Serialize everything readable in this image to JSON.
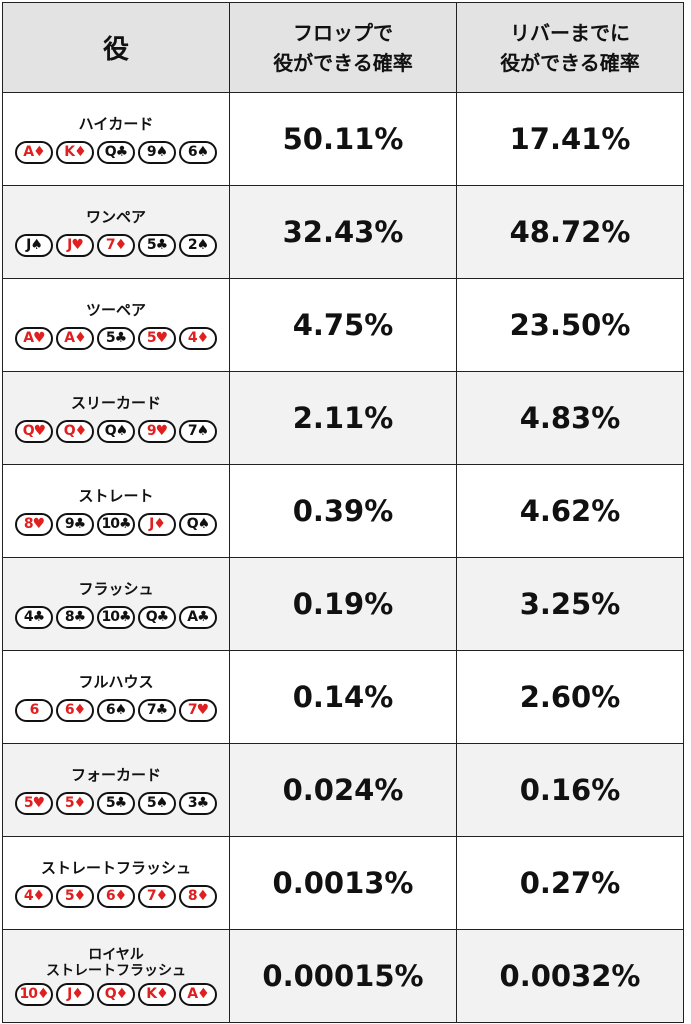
{
  "header": {
    "hand": "役",
    "flop": [
      "フロップで",
      "役ができる確率"
    ],
    "river": [
      "リバーまでに",
      "役ができる確率"
    ]
  },
  "rows": [
    {
      "name": [
        "ハイカード"
      ],
      "flop": "50.11%",
      "river": "17.41%",
      "cards": [
        {
          "t": "A♦",
          "c": "red"
        },
        {
          "t": "K♦",
          "c": "red"
        },
        {
          "t": "Q♣",
          "c": "black"
        },
        {
          "t": "9♠",
          "c": "black"
        },
        {
          "t": "6♠",
          "c": "black"
        }
      ]
    },
    {
      "name": [
        "ワンペア"
      ],
      "flop": "32.43%",
      "river": "48.72%",
      "cards": [
        {
          "t": "J♠",
          "c": "black"
        },
        {
          "t": "J♥",
          "c": "red"
        },
        {
          "t": "7♦",
          "c": "red"
        },
        {
          "t": "5♣",
          "c": "black"
        },
        {
          "t": "2♠",
          "c": "black"
        }
      ]
    },
    {
      "name": [
        "ツーペア"
      ],
      "flop": "4.75%",
      "river": "23.50%",
      "cards": [
        {
          "t": "A♥",
          "c": "red"
        },
        {
          "t": "A♦",
          "c": "red"
        },
        {
          "t": "5♣",
          "c": "black"
        },
        {
          "t": "5♥",
          "c": "red"
        },
        {
          "t": "4♦",
          "c": "red"
        }
      ]
    },
    {
      "name": [
        "スリーカード"
      ],
      "flop": "2.11%",
      "river": "4.83%",
      "cards": [
        {
          "t": "Q♥",
          "c": "red"
        },
        {
          "t": "Q♦",
          "c": "red"
        },
        {
          "t": "Q♠",
          "c": "black"
        },
        {
          "t": "9♥",
          "c": "red"
        },
        {
          "t": "7♠",
          "c": "black"
        }
      ]
    },
    {
      "name": [
        "ストレート"
      ],
      "flop": "0.39%",
      "river": "4.62%",
      "cards": [
        {
          "t": "8♥",
          "c": "red"
        },
        {
          "t": "9♣",
          "c": "black"
        },
        {
          "t": "10♣",
          "c": "black"
        },
        {
          "t": "J♦",
          "c": "red"
        },
        {
          "t": "Q♠",
          "c": "black"
        }
      ]
    },
    {
      "name": [
        "フラッシュ"
      ],
      "flop": "0.19%",
      "river": "3.25%",
      "cards": [
        {
          "t": "4♣",
          "c": "black"
        },
        {
          "t": "8♣",
          "c": "black"
        },
        {
          "t": "10♣",
          "c": "black"
        },
        {
          "t": "Q♣",
          "c": "black"
        },
        {
          "t": "A♣",
          "c": "black"
        }
      ]
    },
    {
      "name": [
        "フルハウス"
      ],
      "flop": "0.14%",
      "river": "2.60%",
      "cards": [
        {
          "t": "6",
          "c": "red"
        },
        {
          "t": "6♦",
          "c": "red"
        },
        {
          "t": "6♠",
          "c": "black"
        },
        {
          "t": "7♣",
          "c": "black"
        },
        {
          "t": "7♥",
          "c": "red"
        }
      ]
    },
    {
      "name": [
        "フォーカード"
      ],
      "flop": "0.024%",
      "river": "0.16%",
      "cards": [
        {
          "t": "5♥",
          "c": "red"
        },
        {
          "t": "5♦",
          "c": "red"
        },
        {
          "t": "5♣",
          "c": "black"
        },
        {
          "t": "5♠",
          "c": "black"
        },
        {
          "t": "3♣",
          "c": "black"
        }
      ]
    },
    {
      "name": [
        "ストレートフラッシュ"
      ],
      "flop": "0.0013%",
      "river": "0.27%",
      "cards": [
        {
          "t": "4♦",
          "c": "red"
        },
        {
          "t": "5♦",
          "c": "red"
        },
        {
          "t": "6♦",
          "c": "red"
        },
        {
          "t": "7♦",
          "c": "red"
        },
        {
          "t": "8♦",
          "c": "red"
        }
      ]
    },
    {
      "name": [
        "ロイヤル",
        "ストレートフラッシュ"
      ],
      "flop": "0.00015%",
      "river": "0.0032%",
      "cards": [
        {
          "t": "10♦",
          "c": "red"
        },
        {
          "t": "J♦",
          "c": "red"
        },
        {
          "t": "Q♦",
          "c": "red"
        },
        {
          "t": "K♦",
          "c": "red"
        },
        {
          "t": "A♦",
          "c": "red"
        }
      ]
    }
  ]
}
